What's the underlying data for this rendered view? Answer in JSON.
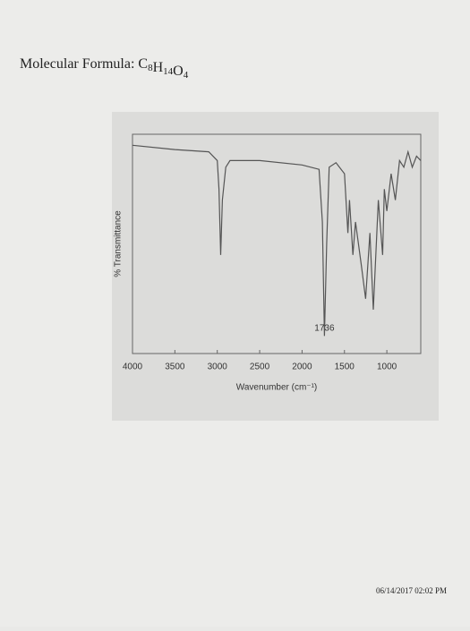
{
  "header": {
    "label": "Molecular Formula:",
    "formula": [
      {
        "symbol": "C",
        "count": 8
      },
      {
        "symbol": "H",
        "count": 14
      },
      {
        "symbol": "O",
        "count": 4
      }
    ]
  },
  "chart_data": {
    "type": "line",
    "xlabel": "Wavenumber (cm⁻¹)",
    "ylabel": "% Transmittance",
    "color": "#555555",
    "xlim": [
      4000,
      600
    ],
    "ylim": [
      0,
      100
    ],
    "xticks": [
      4000,
      3500,
      3000,
      2500,
      2000,
      1500,
      1000
    ],
    "x": [
      4000,
      3500,
      3100,
      3000,
      2980,
      2960,
      2940,
      2900,
      2850,
      2500,
      2000,
      1800,
      1760,
      1736,
      1710,
      1680,
      1600,
      1500,
      1460,
      1440,
      1400,
      1370,
      1300,
      1250,
      1200,
      1160,
      1100,
      1050,
      1030,
      1000,
      950,
      900,
      850,
      800,
      750,
      700,
      650,
      600
    ],
    "values": [
      95,
      93,
      92,
      88,
      75,
      45,
      70,
      85,
      88,
      88,
      86,
      84,
      60,
      8,
      50,
      85,
      87,
      82,
      55,
      70,
      45,
      60,
      40,
      25,
      55,
      20,
      70,
      45,
      75,
      65,
      82,
      70,
      88,
      85,
      92,
      85,
      90,
      88
    ],
    "annotations": [
      {
        "x": 1736
      }
    ]
  },
  "footer": {
    "timestamp": "06/14/2017 02:02 PM"
  }
}
